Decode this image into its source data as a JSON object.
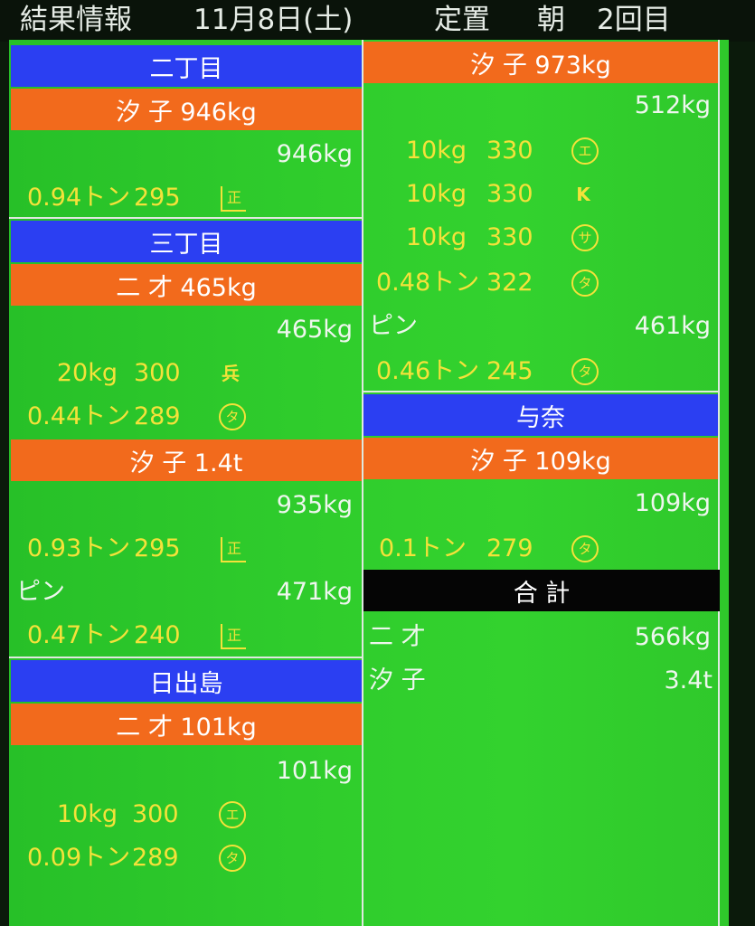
{
  "header": {
    "title": "結果情報",
    "date": "11月8日(土)",
    "type": "定置",
    "session": "朝",
    "round": "2回目"
  },
  "left": {
    "nichome": {
      "area": "二丁目",
      "species": "汐 子 946kg",
      "total": "946kg",
      "rows": [
        {
          "weight": "0.94トン",
          "price": "295",
          "buyer": "正"
        }
      ]
    },
    "sanchome": {
      "area": "三丁目",
      "species1": "二 才 465kg",
      "total1": "465kg",
      "rows1": [
        {
          "weight": "20kg",
          "price": "300",
          "buyer": "兵"
        },
        {
          "weight": "0.44トン",
          "price": "289",
          "buyer": "タ"
        }
      ],
      "species2": "汐 子 1.4t",
      "total2": "935kg",
      "rows2": [
        {
          "weight": "0.93トン",
          "price": "295",
          "buyer": "正"
        }
      ],
      "pin_label": "ピン",
      "pin_total": "471kg",
      "rows3": [
        {
          "weight": "0.47トン",
          "price": "240",
          "buyer": "正"
        }
      ]
    },
    "hinodejima": {
      "area": "日出島",
      "species": "二 才 101kg",
      "total": "101kg",
      "rows": [
        {
          "weight": "10kg",
          "price": "300",
          "buyer": "エ"
        },
        {
          "weight": "0.09トン",
          "price": "289",
          "buyer": "タ"
        }
      ]
    }
  },
  "right": {
    "cont": {
      "species": "汐 子 973kg",
      "total": "512kg",
      "rows": [
        {
          "weight": "10kg",
          "price": "330",
          "buyer": "エ"
        },
        {
          "weight": "10kg",
          "price": "330",
          "buyer": "K"
        },
        {
          "weight": "10kg",
          "price": "330",
          "buyer": "サ"
        },
        {
          "weight": "0.48トン",
          "price": "322",
          "buyer": "タ"
        }
      ],
      "pin_label": "ピン",
      "pin_total": "461kg",
      "pin_rows": [
        {
          "weight": "0.46トン",
          "price": "245",
          "buyer": "タ"
        }
      ]
    },
    "yona": {
      "area": "与奈",
      "species": "汐 子 109kg",
      "total": "109kg",
      "rows": [
        {
          "weight": "0.1トン",
          "price": "279",
          "buyer": "タ"
        }
      ]
    },
    "summary": {
      "heading": "合 計",
      "items": [
        {
          "label": "二 才",
          "value": "566kg"
        },
        {
          "label": "汐 子",
          "value": "3.4t"
        }
      ]
    }
  },
  "colors": {
    "blue_bar": "#2b3ff2",
    "orange_bar": "#f26a1c",
    "board_green": "#2fcc2c",
    "value_yellow": "#f4e23a"
  }
}
